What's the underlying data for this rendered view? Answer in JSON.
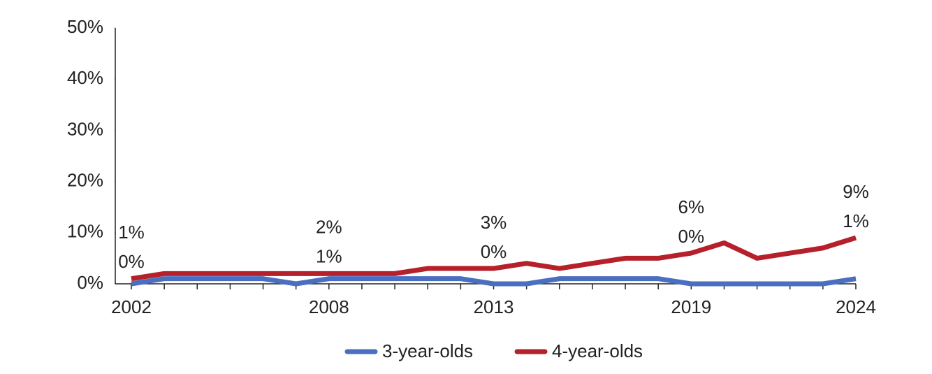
{
  "chart_data": {
    "type": "line",
    "categories": [
      "2002",
      null,
      null,
      null,
      null,
      null,
      "2008",
      null,
      null,
      null,
      null,
      "2013",
      null,
      null,
      null,
      null,
      null,
      "2019",
      null,
      null,
      null,
      null,
      "2024"
    ],
    "series": [
      {
        "name": "3-year-olds",
        "color": "#4a6fc0",
        "values": [
          0,
          1,
          1,
          1,
          1,
          0,
          1,
          1,
          1,
          1,
          1,
          0,
          0,
          1,
          1,
          1,
          1,
          0,
          0,
          0,
          0,
          0,
          1
        ],
        "value_labels": [
          "0%",
          null,
          null,
          null,
          null,
          null,
          "1%",
          null,
          null,
          null,
          null,
          "0%",
          null,
          null,
          null,
          null,
          null,
          "0%",
          null,
          null,
          null,
          null,
          "1%"
        ]
      },
      {
        "name": "4-year-olds",
        "color": "#b5202a",
        "values": [
          1,
          2,
          2,
          2,
          2,
          2,
          2,
          2,
          2,
          3,
          3,
          3,
          4,
          3,
          4,
          5,
          5,
          6,
          8,
          5,
          6,
          7,
          9
        ],
        "value_labels": [
          "1%",
          null,
          null,
          null,
          null,
          null,
          "2%",
          null,
          null,
          null,
          null,
          "3%",
          null,
          null,
          null,
          null,
          null,
          "6%",
          null,
          null,
          null,
          null,
          "9%"
        ]
      }
    ],
    "ylim": [
      0,
      50
    ],
    "yticks": [
      {
        "value": 0,
        "label": "0%"
      },
      {
        "value": 10,
        "label": "10%"
      },
      {
        "value": 20,
        "label": "20%"
      },
      {
        "value": 30,
        "label": "30%"
      },
      {
        "value": 40,
        "label": "40%"
      },
      {
        "value": 50,
        "label": "50%"
      }
    ],
    "legend": "bottom"
  }
}
